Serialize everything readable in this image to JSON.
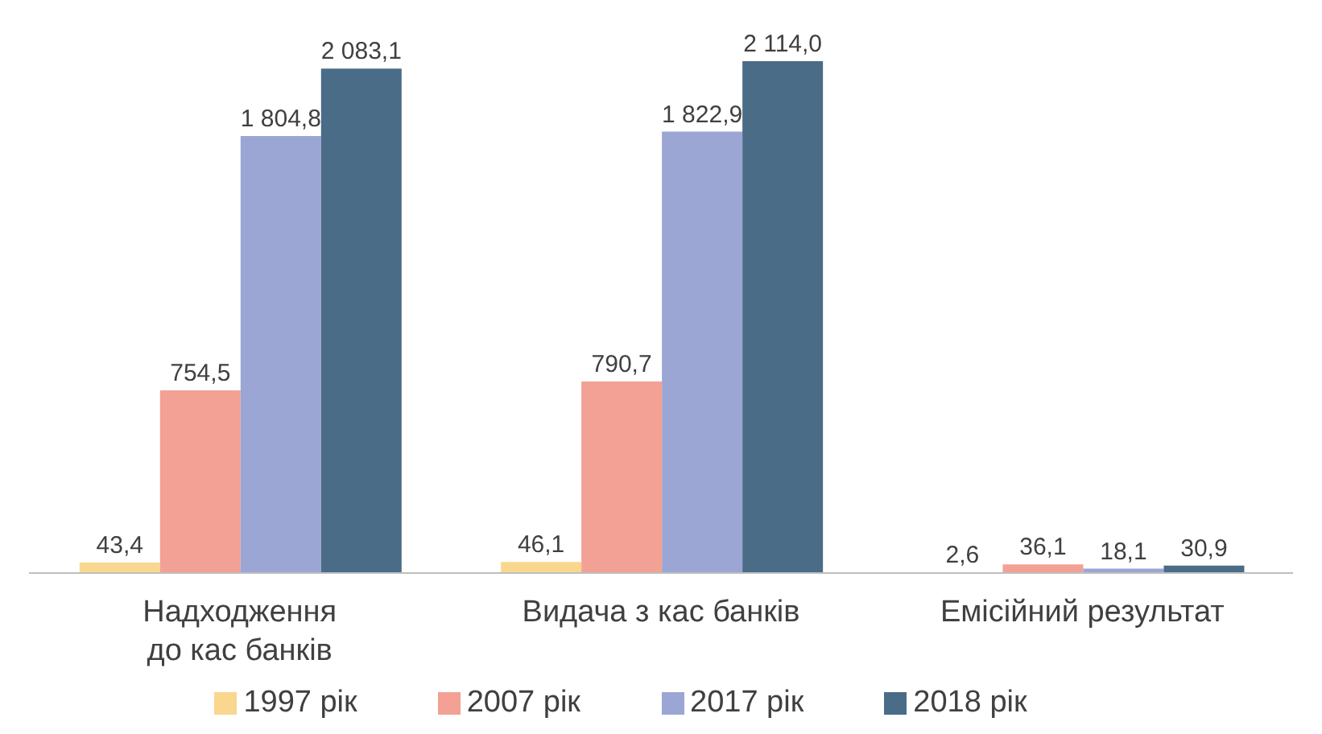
{
  "chart_data": {
    "type": "bar",
    "categories": [
      "Надходження до кас банків",
      "Видача з кас банків",
      "Емісійний результат"
    ],
    "series": [
      {
        "name": "1997 рік",
        "color": "#f9d78f",
        "values": [
          43.4,
          46.1,
          2.6
        ],
        "value_labels": [
          "43,4",
          "46,1",
          "2,6"
        ]
      },
      {
        "name": "2007 рік",
        "color": "#f2a194",
        "values": [
          754.5,
          790.7,
          36.1
        ],
        "value_labels": [
          "754,5",
          "790,7",
          "36,1"
        ]
      },
      {
        "name": "2017 рік",
        "color": "#9ba6d4",
        "values": [
          1804.8,
          1822.9,
          18.1
        ],
        "value_labels": [
          "1 804,8",
          "1 822,9",
          "18,1"
        ]
      },
      {
        "name": "2018 рік",
        "color": "#4a6c87",
        "values": [
          2083.1,
          2114.0,
          30.9
        ],
        "value_labels": [
          "2 083,1",
          "2 114,0",
          "30,9"
        ]
      }
    ],
    "legend": "bottom",
    "grid": false
  }
}
